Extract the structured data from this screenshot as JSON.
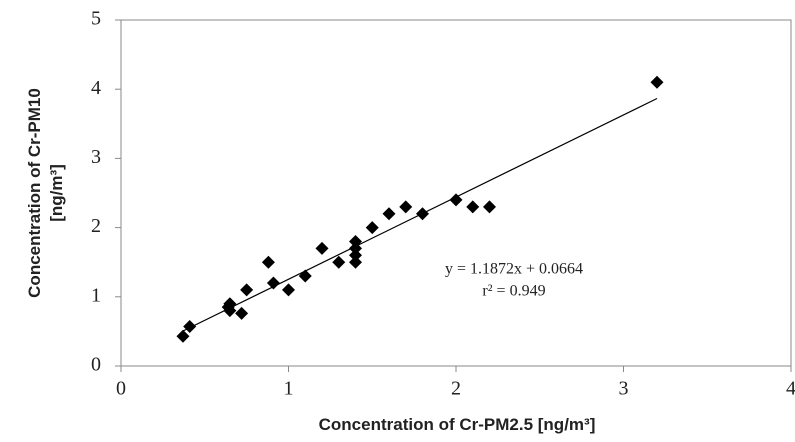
{
  "chart_data": {
    "type": "scatter",
    "x_label": "Concentration of Cr-PM2.5 [ng/m³]",
    "y_label": [
      "Concentration of Cr-PM10",
      "[ng/m³]"
    ],
    "x": [
      0.37,
      0.41,
      0.64,
      0.65,
      0.65,
      0.72,
      0.75,
      0.88,
      0.91,
      1.0,
      1.1,
      1.2,
      1.3,
      1.4,
      1.4,
      1.4,
      1.4,
      1.5,
      1.6,
      1.7,
      1.8,
      2.0,
      2.1,
      2.2,
      3.2
    ],
    "values": [
      0.43,
      0.57,
      0.85,
      0.9,
      0.8,
      0.76,
      1.1,
      1.5,
      1.2,
      1.1,
      1.3,
      1.7,
      1.5,
      1.5,
      1.6,
      1.7,
      1.8,
      2.0,
      2.2,
      2.3,
      2.2,
      2.4,
      2.3,
      2.3,
      4.1
    ],
    "color": "#000000",
    "xlim": [
      0,
      4
    ],
    "xticks": [
      0,
      1,
      2,
      3,
      4
    ],
    "ylim": [
      0,
      5
    ],
    "yticks": [
      0,
      1,
      2,
      3,
      4,
      5
    ],
    "trendline": {
      "slope": 1.1872,
      "intercept": 0.0664
    },
    "annotations": [
      "y = 1.1872x + 0.0664",
      "r² = 0.949"
    ]
  }
}
